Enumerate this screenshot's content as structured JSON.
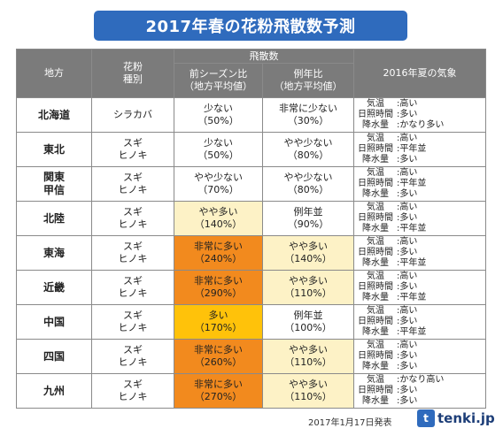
{
  "title": "2017年春の花粉飛散数予測",
  "header": {
    "region": "地方",
    "species": "花粉\n種別",
    "dispersal": "飛散数",
    "prev_season": "前シーズン比\n（地方平均値）",
    "normal_year": "例年比\n（地方平均値）",
    "summer_weather": "2016年夏の気象"
  },
  "weather_labels": [
    "気温",
    "日照時間",
    "降水量"
  ],
  "level_colors": {
    "very-high": "#f28a1e",
    "high": "#ffc20a",
    "slightly-high": "#fdf2c6"
  },
  "rows": [
    {
      "region": "北海道",
      "species": "シラカバ",
      "prev": {
        "text": "少ない",
        "pct": "（50%）",
        "level": ""
      },
      "normal": {
        "text": "非常に少ない",
        "pct": "（30%）",
        "level": ""
      },
      "weather": [
        ":高い",
        ":多い",
        ":かなり多い"
      ]
    },
    {
      "region": "東北",
      "species": "スギ\nヒノキ",
      "prev": {
        "text": "少ない",
        "pct": "（50%）",
        "level": ""
      },
      "normal": {
        "text": "やや少ない",
        "pct": "（80%）",
        "level": ""
      },
      "weather": [
        ":高い",
        ":平年並",
        ":多い"
      ]
    },
    {
      "region": "関東\n甲信",
      "species": "スギ\nヒノキ",
      "prev": {
        "text": "やや少ない",
        "pct": "（70%）",
        "level": ""
      },
      "normal": {
        "text": "やや少ない",
        "pct": "（80%）",
        "level": ""
      },
      "weather": [
        ":高い",
        ":平年並",
        ":多い"
      ]
    },
    {
      "region": "北陸",
      "species": "スギ\nヒノキ",
      "prev": {
        "text": "やや多い",
        "pct": "（140%）",
        "level": "slightly-high"
      },
      "normal": {
        "text": "例年並",
        "pct": "（90%）",
        "level": ""
      },
      "weather": [
        ":高い",
        ":多い",
        ":平年並"
      ]
    },
    {
      "region": "東海",
      "species": "スギ\nヒノキ",
      "prev": {
        "text": "非常に多い",
        "pct": "（240%）",
        "level": "very-high"
      },
      "normal": {
        "text": "やや多い",
        "pct": "（140%）",
        "level": "slightly-high"
      },
      "weather": [
        ":高い",
        ":多い",
        ":平年並"
      ]
    },
    {
      "region": "近畿",
      "species": "スギ\nヒノキ",
      "prev": {
        "text": "非常に多い",
        "pct": "（290%）",
        "level": "very-high"
      },
      "normal": {
        "text": "やや多い",
        "pct": "（110%）",
        "level": "slightly-high"
      },
      "weather": [
        ":高い",
        ":多い",
        ":平年並"
      ]
    },
    {
      "region": "中国",
      "species": "スギ\nヒノキ",
      "prev": {
        "text": "多い",
        "pct": "（170%）",
        "level": "high"
      },
      "normal": {
        "text": "例年並",
        "pct": "（100%）",
        "level": ""
      },
      "weather": [
        ":高い",
        ":多い",
        ":平年並"
      ]
    },
    {
      "region": "四国",
      "species": "スギ\nヒノキ",
      "prev": {
        "text": "非常に多い",
        "pct": "（260%）",
        "level": "very-high"
      },
      "normal": {
        "text": "やや多い",
        "pct": "（110%）",
        "level": "slightly-high"
      },
      "weather": [
        ":高い",
        ":多い",
        ":多い"
      ]
    },
    {
      "region": "九州",
      "species": "スギ\nヒノキ",
      "prev": {
        "text": "非常に多い",
        "pct": "（270%）",
        "level": "very-high"
      },
      "normal": {
        "text": "やや多い",
        "pct": "（110%）",
        "level": "slightly-high"
      },
      "weather": [
        ":かなり高い",
        ":多い",
        ":多い"
      ]
    }
  ],
  "footer": {
    "date": "2017年1月17日発表",
    "logo_icon": "t",
    "logo_text": "tenki.jp"
  }
}
